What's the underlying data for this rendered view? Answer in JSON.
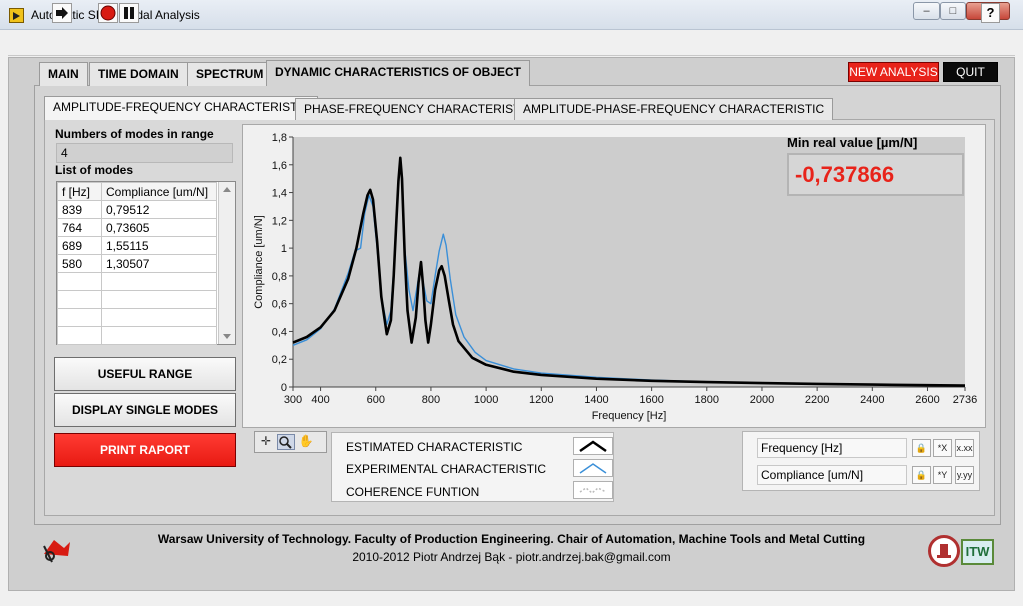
{
  "window": {
    "title": "Automatic SISO Modal Analysis",
    "minimize": "–",
    "maximize": "□",
    "close": "✕"
  },
  "toolbar": {
    "run_icon": "run-arrow-icon",
    "abort_icon": "abort-stop-icon",
    "pause_icon": "pause-icon",
    "help": "?"
  },
  "tabs": [
    {
      "label": "MAIN"
    },
    {
      "label": "TIME DOMAIN"
    },
    {
      "label": "SPECTRUM"
    },
    {
      "label": "DYNAMIC CHARACTERISTICS OF OBJECT",
      "active": true
    }
  ],
  "actions": {
    "new_analysis": "NEW ANALYSIS",
    "quit": "QUIT"
  },
  "subtabs": [
    {
      "label": "AMPLITUDE-FREQUENCY CHARACTERISTIC",
      "active": true
    },
    {
      "label": "PHASE-FREQUENCY CHARACTERISTIC"
    },
    {
      "label": "AMPLITUDE-PHASE-FREQUENCY CHARACTERISTIC"
    }
  ],
  "modes": {
    "count_label": "Numbers of modes in range",
    "count_value": "4",
    "list_label": "List of modes",
    "columns": [
      "f [Hz]",
      "Compliance [um/N]"
    ],
    "rows": [
      [
        "839",
        "0,79512"
      ],
      [
        "764",
        "0,73605"
      ],
      [
        "689",
        "1,55115"
      ],
      [
        "580",
        "1,30507"
      ]
    ]
  },
  "buttons": {
    "useful_range": "USEFUL RANGE",
    "display_single_modes": "DISPLAY SINGLE MODES",
    "print_raport": "PRINT RAPORT"
  },
  "min_real": {
    "label": "Min real value [µm/N]",
    "value": "-0,737866",
    "color": "#e8231a"
  },
  "legend": {
    "estimated": "ESTIMATED CHARACTERISTIC",
    "experimental": "EXPERIMENTAL CHARACTERISTIC",
    "coherence": "COHERENCE FUNTION"
  },
  "scales": {
    "x_name": "Frequency [Hz]",
    "y_name": "Compliance [um/N]",
    "x_format_icon": "x-format-icon",
    "y_format_icon": "y-format-icon"
  },
  "footer": {
    "line1": "Warsaw University of Technology. Faculty of Production Engineering. Chair of Automation, Machine Tools and Metal Cutting",
    "line2": "2010-2012 Piotr Andrzej Bąk - piotr.andrzej.bak@gmail.com",
    "logo_left": "ZAOiOS",
    "logo_right": "ITW"
  },
  "chart_data": {
    "type": "line",
    "xlabel": "Frequency [Hz]",
    "ylabel": "Compliance [um/N]",
    "xlim": [
      300,
      2736
    ],
    "ylim": [
      0,
      1.8
    ],
    "x_ticks": [
      300,
      400,
      600,
      800,
      1000,
      1200,
      1400,
      1600,
      1800,
      2000,
      2200,
      2400,
      2600,
      2736
    ],
    "y_ticks": [
      0,
      0.2,
      0.4,
      0.6,
      0.8,
      1.0,
      1.2,
      1.4,
      1.6,
      1.8
    ],
    "x_tick_labels": [
      "300",
      "400",
      "600",
      "800",
      "1000",
      "1200",
      "1400",
      "1600",
      "1800",
      "2000",
      "2200",
      "2400",
      "2600",
      "2736"
    ],
    "y_tick_labels": [
      "0",
      "0,2",
      "0,4",
      "0,6",
      "0,8",
      "1",
      "1,2",
      "1,4",
      "1,6",
      "1,8"
    ],
    "grid": false,
    "series": [
      {
        "name": "ESTIMATED CHARACTERISTIC",
        "color": "#000000",
        "x": [
          300,
          350,
          400,
          450,
          500,
          530,
          555,
          570,
          580,
          590,
          605,
          620,
          640,
          655,
          665,
          675,
          682,
          689,
          695,
          705,
          715,
          730,
          745,
          755,
          764,
          772,
          780,
          790,
          800,
          815,
          830,
          839,
          850,
          865,
          880,
          900,
          950,
          1000,
          1100,
          1200,
          1400,
          1600,
          1800,
          2000,
          2200,
          2400,
          2600,
          2736
        ],
        "y": [
          0.32,
          0.36,
          0.43,
          0.55,
          0.78,
          1.0,
          1.25,
          1.38,
          1.42,
          1.35,
          1.05,
          0.65,
          0.38,
          0.48,
          0.8,
          1.2,
          1.48,
          1.65,
          1.5,
          0.95,
          0.55,
          0.32,
          0.5,
          0.75,
          0.9,
          0.72,
          0.48,
          0.32,
          0.45,
          0.7,
          0.84,
          0.87,
          0.8,
          0.62,
          0.45,
          0.33,
          0.21,
          0.16,
          0.11,
          0.087,
          0.06,
          0.045,
          0.035,
          0.028,
          0.022,
          0.017,
          0.013,
          0.01
        ]
      },
      {
        "name": "EXPERIMENTAL CHARACTERISTIC",
        "color": "#3a8fd8",
        "x": [
          300,
          350,
          400,
          450,
          500,
          525,
          545,
          560,
          575,
          590,
          605,
          620,
          640,
          655,
          665,
          675,
          682,
          689,
          695,
          705,
          720,
          735,
          748,
          758,
          764,
          772,
          785,
          800,
          815,
          830,
          845,
          855,
          870,
          890,
          920,
          960,
          1000,
          1100,
          1200,
          1400,
          1600,
          1800,
          2000,
          2200,
          2400,
          2600,
          2736
        ],
        "y": [
          0.3,
          0.34,
          0.42,
          0.56,
          0.82,
          0.98,
          1.0,
          1.25,
          1.38,
          1.3,
          1.0,
          0.65,
          0.45,
          0.55,
          0.85,
          1.22,
          1.5,
          1.62,
          1.48,
          1.0,
          0.7,
          0.55,
          0.7,
          0.82,
          0.84,
          0.75,
          0.62,
          0.6,
          0.8,
          0.98,
          1.1,
          1.02,
          0.78,
          0.52,
          0.36,
          0.25,
          0.19,
          0.13,
          0.1,
          0.07,
          0.05,
          0.037,
          0.028,
          0.022,
          0.017,
          0.012,
          0.01
        ]
      }
    ]
  }
}
